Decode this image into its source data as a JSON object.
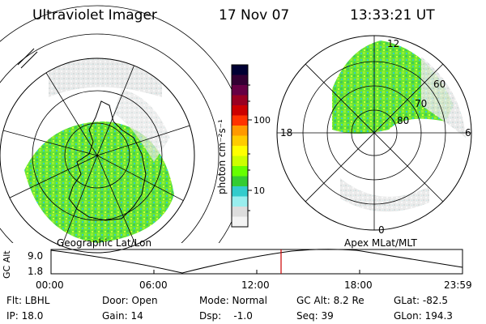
{
  "header": {
    "instrument": "Ultraviolet Imager",
    "date": "17 Nov 07",
    "time": "13:33:21 UT"
  },
  "left_panel": {
    "label": "Geographic Lat/Lon"
  },
  "right_panel": {
    "label": "Apex MLat/MLT",
    "mlt_labels": {
      "top": "12",
      "bottom": "0",
      "left": "18",
      "right": "6"
    },
    "lat_labels": [
      "60",
      "70",
      "80"
    ]
  },
  "colorbar": {
    "unit_label": "photon cm⁻²s⁻¹",
    "tick_labels": [
      "100",
      "10"
    ],
    "colors": [
      "#000033",
      "#330033",
      "#660044",
      "#990022",
      "#cc0000",
      "#ff3300",
      "#ff9900",
      "#ffcc00",
      "#ffff00",
      "#ccff00",
      "#66ff00",
      "#33cc33",
      "#33cccc",
      "#99eeee",
      "#dddddd",
      "#f4f4f4"
    ]
  },
  "altitude_plot": {
    "ylabel": "GC Alt",
    "y_ticks": [
      "9.0",
      "1.8"
    ],
    "x_ticks": [
      "00:00",
      "06:00",
      "12:00",
      "18:00",
      "23:59"
    ]
  },
  "info": {
    "col1": [
      "Flt: LBHL",
      "IP: 18.0"
    ],
    "col2": [
      "Door: Open",
      "Gain: 14"
    ],
    "col3": [
      "Mode: Normal",
      "Dsp:    -1.0"
    ],
    "col4": [
      "GC Alt: 8.2 Re",
      "Seq: 39"
    ],
    "col5": [
      "GLat: -82.5",
      "GLon: 194.3"
    ]
  }
}
